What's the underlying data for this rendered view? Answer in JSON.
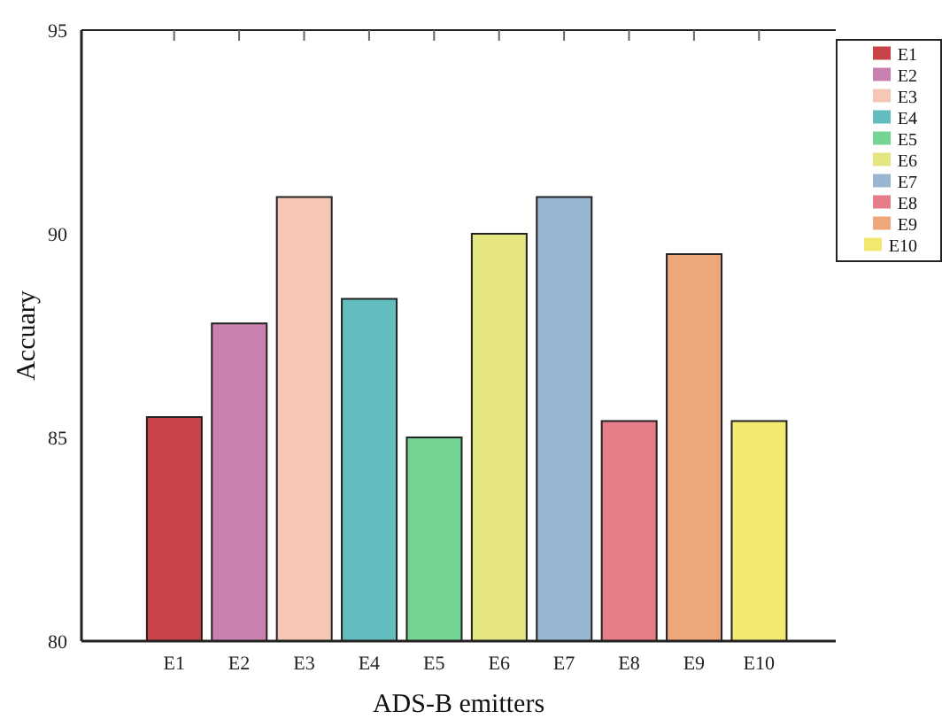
{
  "chart_data": {
    "type": "bar",
    "xlabel": "ADS-B emitters",
    "ylabel": "Accuary",
    "stacked": true,
    "categories": [
      "E1",
      "E2",
      "E3",
      "E4",
      "E5",
      "E6",
      "E7",
      "E8",
      "E9",
      "E10"
    ],
    "series": [
      {
        "name": "E1",
        "color": "#c84448",
        "values": [
          85.5,
          null,
          null,
          null,
          null,
          null,
          null,
          null,
          null,
          null
        ]
      },
      {
        "name": "E2",
        "color": "#c982b0",
        "values": [
          null,
          87.8,
          null,
          null,
          null,
          null,
          null,
          null,
          null,
          null
        ]
      },
      {
        "name": "E3",
        "color": "#f6c8b4",
        "values": [
          null,
          null,
          90.9,
          null,
          null,
          null,
          null,
          null,
          null,
          null
        ]
      },
      {
        "name": "E4",
        "color": "#63bdbe",
        "values": [
          null,
          null,
          null,
          88.4,
          null,
          null,
          null,
          null,
          null,
          null
        ]
      },
      {
        "name": "E5",
        "color": "#74d494",
        "values": [
          null,
          null,
          null,
          null,
          85.0,
          null,
          null,
          null,
          null,
          null
        ]
      },
      {
        "name": "E6",
        "color": "#e5e582",
        "values": [
          null,
          null,
          null,
          null,
          null,
          90.0,
          null,
          null,
          null,
          null
        ]
      },
      {
        "name": "E7",
        "color": "#98b6d2",
        "values": [
          null,
          null,
          null,
          null,
          null,
          null,
          90.9,
          null,
          null,
          null
        ]
      },
      {
        "name": "E8",
        "color": "#e87d8a",
        "values": [
          null,
          null,
          null,
          null,
          null,
          null,
          null,
          85.4,
          null,
          null
        ]
      },
      {
        "name": "E9",
        "color": "#eea77a",
        "values": [
          null,
          null,
          null,
          null,
          null,
          null,
          null,
          null,
          89.5,
          null
        ]
      },
      {
        "name": "E10",
        "color": "#f2ea70",
        "values": [
          null,
          null,
          null,
          null,
          null,
          null,
          null,
          null,
          null,
          85.4
        ]
      }
    ],
    "ylim": [
      80,
      95
    ],
    "yticks": [
      80,
      85,
      90,
      95
    ],
    "grid": false,
    "legend": "top right"
  }
}
